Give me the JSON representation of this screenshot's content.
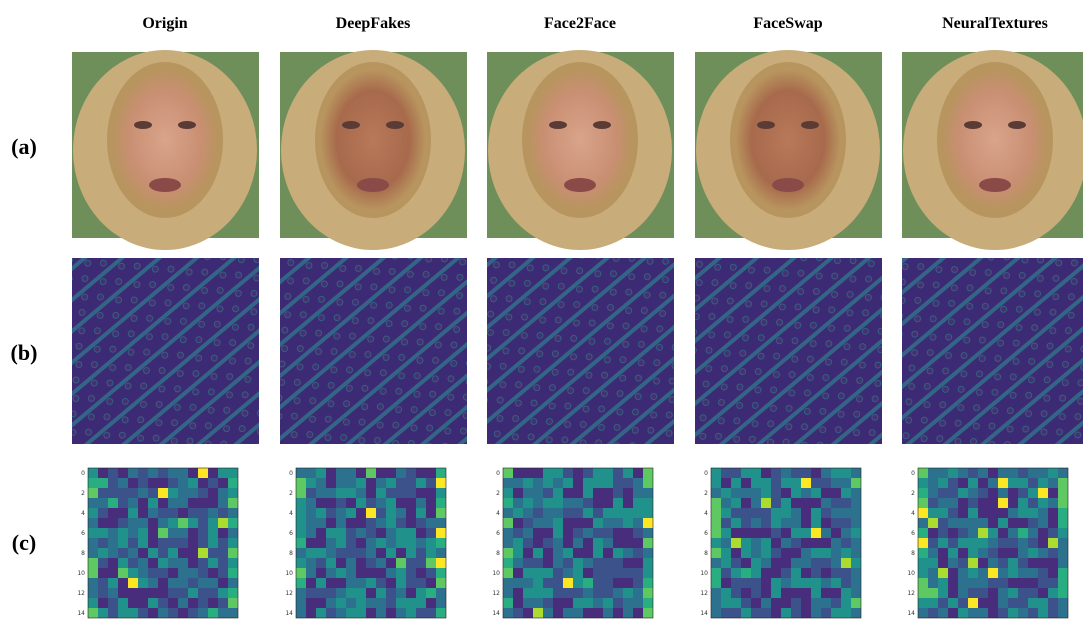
{
  "columns": [
    "Origin",
    "DeepFakes",
    "Face2Face",
    "FaceSwap",
    "NeuralTextures"
  ],
  "rows": [
    "(a)",
    "(b)",
    "(c)"
  ],
  "heatmap_yticks": [
    "0",
    "2",
    "4",
    "6",
    "8",
    "10",
    "12",
    "14"
  ]
}
